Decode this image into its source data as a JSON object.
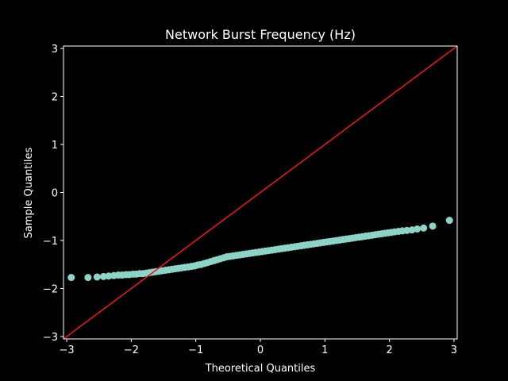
{
  "chart_data": {
    "type": "scatter",
    "title": "Network Burst Frequency (Hz)",
    "xlabel": "Theoretical Quantiles",
    "ylabel": "Sample Quantiles",
    "xlim": [
      -3.05,
      3.05
    ],
    "ylim": [
      -3.05,
      3.05
    ],
    "xticks": [
      -3,
      -2,
      -1,
      0,
      1,
      2,
      3
    ],
    "yticks": [
      -3,
      -2,
      -1,
      0,
      1,
      2,
      3
    ],
    "grid": false,
    "colors": {
      "background": "#000000",
      "axes": "#ffffff",
      "points": "#8dd3c7",
      "reference_line": "#e8191c"
    },
    "reference_line": {
      "x": [
        -3.05,
        3.05
      ],
      "y": [
        -3.05,
        3.05
      ]
    },
    "series": [
      {
        "x": [
          -2.93,
          -2.67,
          -2.53,
          -2.43,
          -2.35,
          -2.27,
          -2.2,
          -2.14,
          -2.08,
          -2.03,
          -1.97,
          -1.92,
          -1.87,
          -1.82,
          -1.77,
          -1.72,
          -1.67,
          -1.62,
          -1.57,
          -1.52,
          -1.47,
          -1.42,
          -1.37,
          -1.32,
          -1.27,
          -1.22,
          -1.17,
          -1.12,
          -1.07,
          -1.02,
          -0.97,
          -0.92,
          -0.87,
          -0.82,
          -0.77,
          -0.72,
          -0.67,
          -0.62,
          -0.57,
          -0.52,
          -0.47,
          -0.42,
          -0.37,
          -0.32,
          -0.27,
          -0.22,
          -0.17,
          -0.12,
          -0.07,
          -0.02,
          0.03,
          0.08,
          0.13,
          0.18,
          0.23,
          0.28,
          0.33,
          0.38,
          0.43,
          0.48,
          0.53,
          0.58,
          0.63,
          0.68,
          0.73,
          0.78,
          0.83,
          0.88,
          0.93,
          0.98,
          1.03,
          1.08,
          1.13,
          1.18,
          1.23,
          1.28,
          1.33,
          1.38,
          1.43,
          1.48,
          1.53,
          1.58,
          1.63,
          1.68,
          1.73,
          1.78,
          1.83,
          1.88,
          1.93,
          1.98,
          2.03,
          2.08,
          2.14,
          2.2,
          2.27,
          2.35,
          2.43,
          2.53,
          2.67,
          2.93
        ],
        "y": [
          -1.77,
          -1.77,
          -1.76,
          -1.75,
          -1.74,
          -1.73,
          -1.72,
          -1.72,
          -1.71,
          -1.71,
          -1.7,
          -1.7,
          -1.69,
          -1.69,
          -1.68,
          -1.67,
          -1.66,
          -1.65,
          -1.64,
          -1.63,
          -1.62,
          -1.61,
          -1.6,
          -1.59,
          -1.58,
          -1.57,
          -1.56,
          -1.55,
          -1.54,
          -1.53,
          -1.51,
          -1.5,
          -1.48,
          -1.46,
          -1.44,
          -1.42,
          -1.4,
          -1.38,
          -1.36,
          -1.34,
          -1.33,
          -1.32,
          -1.31,
          -1.3,
          -1.29,
          -1.28,
          -1.27,
          -1.26,
          -1.25,
          -1.24,
          -1.23,
          -1.22,
          -1.21,
          -1.2,
          -1.19,
          -1.18,
          -1.17,
          -1.16,
          -1.15,
          -1.14,
          -1.13,
          -1.12,
          -1.11,
          -1.1,
          -1.09,
          -1.08,
          -1.07,
          -1.06,
          -1.05,
          -1.04,
          -1.03,
          -1.02,
          -1.01,
          -1.0,
          -0.99,
          -0.98,
          -0.97,
          -0.96,
          -0.95,
          -0.94,
          -0.93,
          -0.92,
          -0.91,
          -0.9,
          -0.89,
          -0.88,
          -0.87,
          -0.86,
          -0.85,
          -0.84,
          -0.83,
          -0.82,
          -0.81,
          -0.8,
          -0.79,
          -0.78,
          -0.76,
          -0.74,
          -0.7,
          -0.58
        ]
      }
    ]
  }
}
